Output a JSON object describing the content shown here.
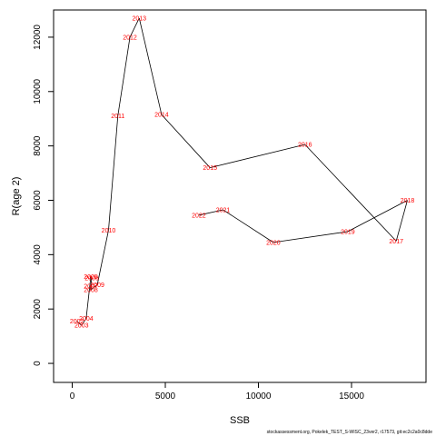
{
  "chart_data": {
    "type": "line",
    "title": "",
    "xlabel": "SSB",
    "ylabel": "R(age 2)",
    "xlim": [
      -1000,
      19000
    ],
    "ylim": [
      -700,
      13000
    ],
    "x_ticks": [
      0,
      5000,
      10000,
      15000
    ],
    "y_ticks": [
      0,
      2000,
      4000,
      6000,
      8000,
      10000,
      12000
    ],
    "line_color": "#000000",
    "label_color": "#ff0000",
    "points": [
      {
        "label": "2002",
        "x": 250,
        "y": 1550
      },
      {
        "label": "2003",
        "x": 500,
        "y": 1400
      },
      {
        "label": "2004",
        "x": 750,
        "y": 1650
      },
      {
        "label": "2005",
        "x": 1000,
        "y": 3200
      },
      {
        "label": "2006",
        "x": 1050,
        "y": 3150
      },
      {
        "label": "2007",
        "x": 1000,
        "y": 2850
      },
      {
        "label": "2008",
        "x": 1000,
        "y": 2700
      },
      {
        "label": "2009",
        "x": 1350,
        "y": 2900
      },
      {
        "label": "2010",
        "x": 1950,
        "y": 4900
      },
      {
        "label": "2011",
        "x": 2450,
        "y": 9100
      },
      {
        "label": "2012",
        "x": 3100,
        "y": 12000
      },
      {
        "label": "2013",
        "x": 3600,
        "y": 12700
      },
      {
        "label": "2014",
        "x": 4800,
        "y": 9150
      },
      {
        "label": "2015",
        "x": 7400,
        "y": 7200
      },
      {
        "label": "2016",
        "x": 12500,
        "y": 8050
      },
      {
        "label": "2017",
        "x": 17400,
        "y": 4500
      },
      {
        "label": "2018",
        "x": 18000,
        "y": 6000
      },
      {
        "label": "2019",
        "x": 14800,
        "y": 4850
      },
      {
        "label": "2020",
        "x": 10800,
        "y": 4450
      },
      {
        "label": "2021",
        "x": 8100,
        "y": 5650
      },
      {
        "label": "2022",
        "x": 6800,
        "y": 5450
      }
    ]
  },
  "footnote": "stockassessment.org, Pokelek_TEST_S-WISC_23ver2, r17573, git:ec2c2a0c8dde"
}
